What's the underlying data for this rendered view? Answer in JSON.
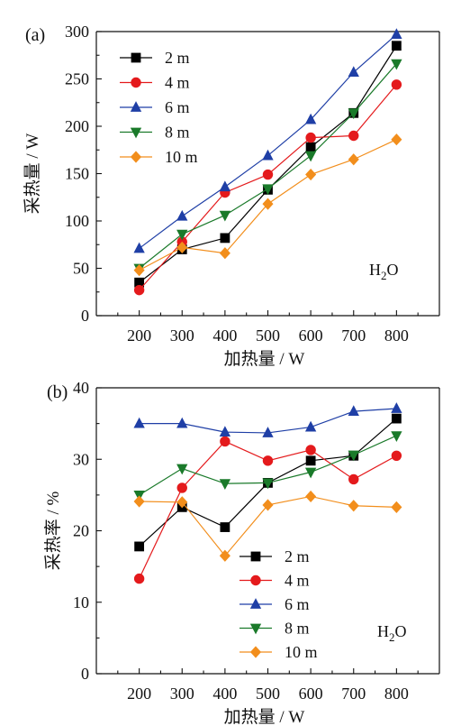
{
  "chart_data": [
    {
      "type": "line",
      "panel_label": "(a)",
      "xlabel": "加热量 / W",
      "ylabel": "采热量 / W",
      "x": [
        200,
        300,
        400,
        500,
        600,
        700,
        800
      ],
      "xlim": [
        100,
        900
      ],
      "ylim": [
        0,
        300
      ],
      "xticks": [
        200,
        300,
        400,
        500,
        600,
        700,
        800
      ],
      "yticks": [
        0,
        50,
        100,
        150,
        200,
        250,
        300
      ],
      "annotation": {
        "base": "H",
        "sub": "2",
        "tail": "O"
      },
      "legend_position": "top-left",
      "series": [
        {
          "name": "2 m",
          "color": "#000000",
          "marker": "square",
          "values": [
            35,
            70,
            82,
            133,
            178,
            214,
            285
          ]
        },
        {
          "name": "4 m",
          "color": "#e41a1c",
          "marker": "circle",
          "values": [
            27,
            78,
            130,
            149,
            188,
            190,
            244
          ]
        },
        {
          "name": "6 m",
          "color": "#1f3fa6",
          "marker": "triangle-up",
          "values": [
            71,
            105,
            136,
            169,
            207,
            257,
            297
          ]
        },
        {
          "name": "8 m",
          "color": "#1a7a2a",
          "marker": "triangle-down",
          "values": [
            50,
            86,
            106,
            134,
            169,
            214,
            266
          ]
        },
        {
          "name": "10 m",
          "color": "#f28e1c",
          "marker": "diamond",
          "values": [
            48,
            72,
            66,
            118,
            149,
            165,
            186
          ]
        }
      ]
    },
    {
      "type": "line",
      "panel_label": "(b)",
      "xlabel": "加热量 / W",
      "ylabel": "采热率 / %",
      "x": [
        200,
        300,
        400,
        500,
        600,
        700,
        800
      ],
      "xlim": [
        100,
        900
      ],
      "ylim": [
        0,
        40
      ],
      "xticks": [
        200,
        300,
        400,
        500,
        600,
        700,
        800
      ],
      "yticks": [
        0,
        10,
        20,
        30,
        40
      ],
      "annotation": {
        "base": "H",
        "sub": "2",
        "tail": "O"
      },
      "legend_position": "bottom-center",
      "series": [
        {
          "name": "2 m",
          "color": "#000000",
          "marker": "square",
          "values": [
            17.8,
            23.3,
            20.5,
            26.7,
            29.8,
            30.5,
            35.7
          ]
        },
        {
          "name": "4 m",
          "color": "#e41a1c",
          "marker": "circle",
          "values": [
            13.3,
            26.0,
            32.5,
            29.8,
            31.3,
            27.2,
            30.5
          ]
        },
        {
          "name": "6 m",
          "color": "#1f3fa6",
          "marker": "triangle-up",
          "values": [
            35.0,
            35.0,
            33.8,
            33.7,
            34.5,
            36.7,
            37.1
          ]
        },
        {
          "name": "8 m",
          "color": "#1a7a2a",
          "marker": "triangle-down",
          "values": [
            25.0,
            28.7,
            26.6,
            26.7,
            28.2,
            30.6,
            33.3
          ]
        },
        {
          "name": "10 m",
          "color": "#f28e1c",
          "marker": "diamond",
          "values": [
            24.1,
            24.0,
            16.5,
            23.6,
            24.8,
            23.5,
            23.3
          ]
        }
      ]
    }
  ]
}
